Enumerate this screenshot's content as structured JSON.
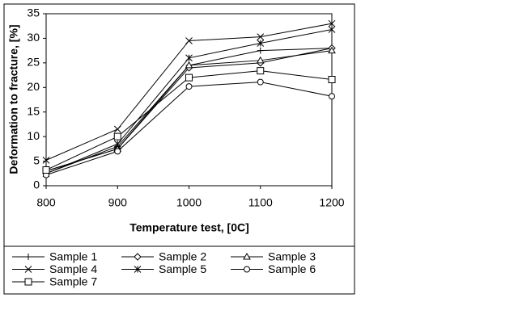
{
  "chart_data": {
    "type": "line",
    "xlabel": "Temperature test, [0C]",
    "ylabel": "Deformation to fracture, [%]",
    "x": [
      800,
      900,
      1000,
      1100,
      1200
    ],
    "xlim": [
      800,
      1200
    ],
    "xticks": [
      800,
      900,
      1000,
      1100,
      1200
    ],
    "ylim": [
      0,
      35
    ],
    "yticks": [
      0,
      5,
      10,
      15,
      20,
      25,
      30,
      35
    ],
    "grid": false,
    "legend": "bottom",
    "series": [
      {
        "name": "Sample 1",
        "color": "#000000",
        "marker": "plus",
        "values": [
          2.5,
          8,
          24.5,
          27.5,
          28
        ]
      },
      {
        "name": "Sample 2",
        "color": "#000000",
        "marker": "diamond",
        "values": [
          3,
          7.5,
          24,
          25,
          28
        ]
      },
      {
        "name": "Sample 3",
        "color": "#000000",
        "marker": "triangle",
        "values": [
          3,
          7.5,
          24.5,
          25.5,
          27.5
        ]
      },
      {
        "name": "Sample 4",
        "color": "#000000",
        "marker": "cross",
        "values": [
          5.2,
          11.5,
          29.5,
          30.3,
          33
        ]
      },
      {
        "name": "Sample 5",
        "color": "#000000",
        "marker": "star",
        "values": [
          2.5,
          8.5,
          26,
          29,
          31.8
        ]
      },
      {
        "name": "Sample 6",
        "color": "#000000",
        "marker": "circle",
        "values": [
          2.2,
          7,
          20.2,
          21.1,
          18.2
        ]
      },
      {
        "name": "Sample 7",
        "color": "#000000",
        "marker": "square",
        "values": [
          3.2,
          10,
          22,
          23.4,
          21.6
        ]
      }
    ]
  }
}
